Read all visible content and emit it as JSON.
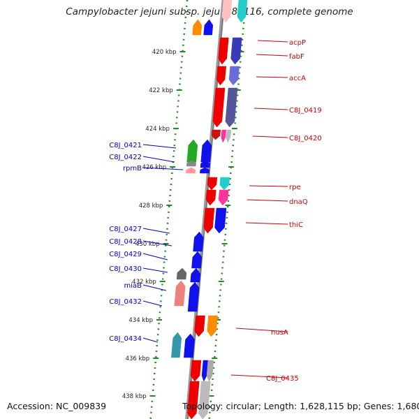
{
  "title": "Campylobacter jejuni subsp. jejuni 81116, complete genome",
  "footer": {
    "accession": "Accession: NC_009839",
    "summary": "Topology: circular; Length: 1,628,115 bp; Genes: 1,680"
  },
  "colors": {
    "forward_label": "#0000cc",
    "reverse_label": "#cc0000",
    "backbone": "#888888",
    "ruler": "#228b22"
  },
  "ticks": [
    "420 kbp",
    "422 kbp",
    "424 kbp",
    "426 kbp",
    "428 kbp",
    "430 kbp",
    "432 kbp",
    "434 kbp",
    "436 kbp",
    "438 kbp"
  ],
  "forward_genes": [
    "C8J_0421",
    "C8J_0422",
    "rpmB",
    "C8J_0427",
    "C8J_0428",
    "C8J_0429",
    "C8J_0430",
    "miaB",
    "C8J_0432",
    "C8J_0434"
  ],
  "reverse_genes": [
    "acpP",
    "fabF",
    "accA",
    "C8J_0419",
    "C8J_0420",
    "rpe",
    "dnaQ",
    "thiC",
    "nusA",
    "C8J_0435"
  ]
}
